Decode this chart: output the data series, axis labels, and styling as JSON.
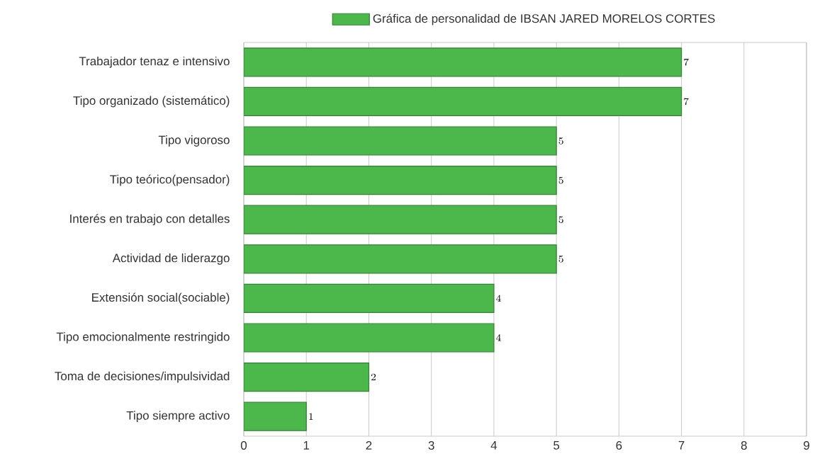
{
  "chart_data": {
    "type": "bar",
    "orientation": "horizontal",
    "categories": [
      "Trabajador tenaz e intensivo",
      "Tipo organizado (sistemático)",
      "Tipo vigoroso",
      "Tipo teórico(pensador)",
      "Interés en trabajo con detalles",
      "Actividad de liderazgo",
      "Extensión social(sociable)",
      "Tipo emocionalmente restringido",
      "Toma de decisiones/impulsividad",
      "Tipo siempre activo"
    ],
    "series": [
      {
        "name": "Gráfica de personalidad de IBSAN JARED MORELOS CORTES",
        "color": "#4cb84c",
        "values": [
          7,
          7,
          5,
          5,
          5,
          5,
          4,
          4,
          2,
          1
        ]
      }
    ],
    "xlim": [
      0,
      9
    ],
    "xticks": [
      0,
      1,
      2,
      3,
      4,
      5,
      6,
      7,
      8,
      9
    ],
    "grid": "x",
    "legend": "top",
    "data_labels": true
  }
}
